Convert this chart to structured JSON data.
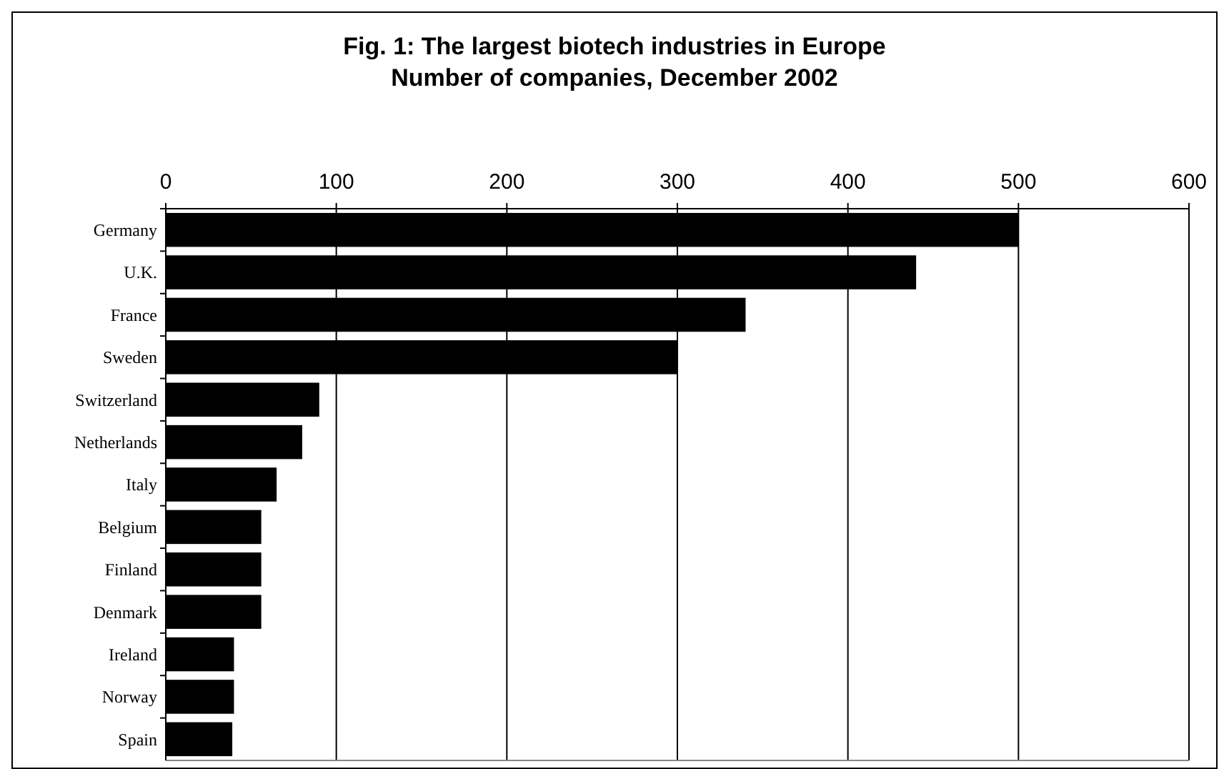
{
  "chart_data": {
    "type": "bar",
    "orientation": "horizontal",
    "title": "Fig. 1: The largest biotech industries in Europe\nNumber of companies, December 2002",
    "categories": [
      "Germany",
      "U.K.",
      "France",
      "Sweden",
      "Switzerland",
      "Netherlands",
      "Italy",
      "Belgium",
      "Finland",
      "Denmark",
      "Ireland",
      "Norway",
      "Spain"
    ],
    "values": [
      500,
      440,
      340,
      300,
      90,
      80,
      65,
      56,
      56,
      56,
      40,
      40,
      39
    ],
    "color": "#000000",
    "xlim": [
      0,
      600
    ],
    "xticks": [
      0,
      100,
      200,
      300,
      400,
      500,
      600
    ],
    "grid": "x"
  }
}
